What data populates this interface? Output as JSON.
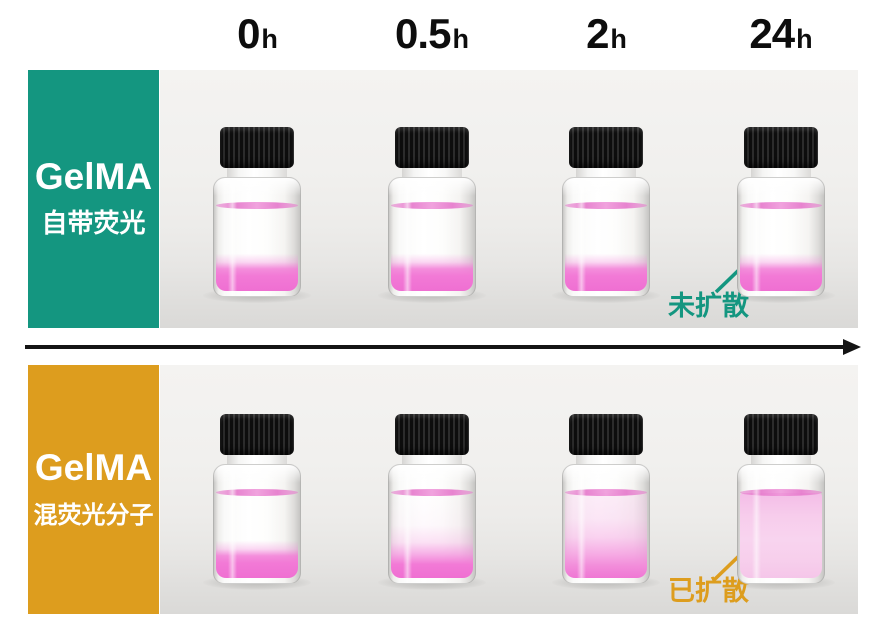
{
  "timeline": {
    "labels": [
      {
        "num": "0",
        "unit": "h"
      },
      {
        "num": "0.5",
        "unit": "h"
      },
      {
        "num": "2",
        "unit": "h"
      },
      {
        "num": "24",
        "unit": "h"
      }
    ]
  },
  "rows": [
    {
      "id": "gelma-auto-fluorescent",
      "label": {
        "title": "GelMA",
        "subtitle": "自带荧光"
      },
      "annotation": {
        "text": "未扩散"
      },
      "vials": [
        {
          "time": "0h",
          "diffusion": "undiffused"
        },
        {
          "time": "0.5h",
          "diffusion": "undiffused"
        },
        {
          "time": "2h",
          "diffusion": "undiffused"
        },
        {
          "time": "24h",
          "diffusion": "undiffused"
        }
      ]
    },
    {
      "id": "gelma-mixed-fluorophore",
      "label": {
        "title": "GelMA",
        "subtitle": "混荧光分子"
      },
      "annotation": {
        "text": "已扩散"
      },
      "vials": [
        {
          "time": "0h",
          "diffusion": "undiffused"
        },
        {
          "time": "0.5h",
          "diffusion": "diffusing-early"
        },
        {
          "time": "2h",
          "diffusion": "diffusing"
        },
        {
          "time": "24h",
          "diffusion": "diffused"
        }
      ]
    }
  ],
  "colors": {
    "teal": "#149680",
    "orange": "#DD9D1E",
    "pink": "#F27AD6",
    "pink_light": "#F7CDEC",
    "arrow_black": "#141414",
    "time_text": "#0D0D0D",
    "label_text": "#FFFFFF"
  }
}
